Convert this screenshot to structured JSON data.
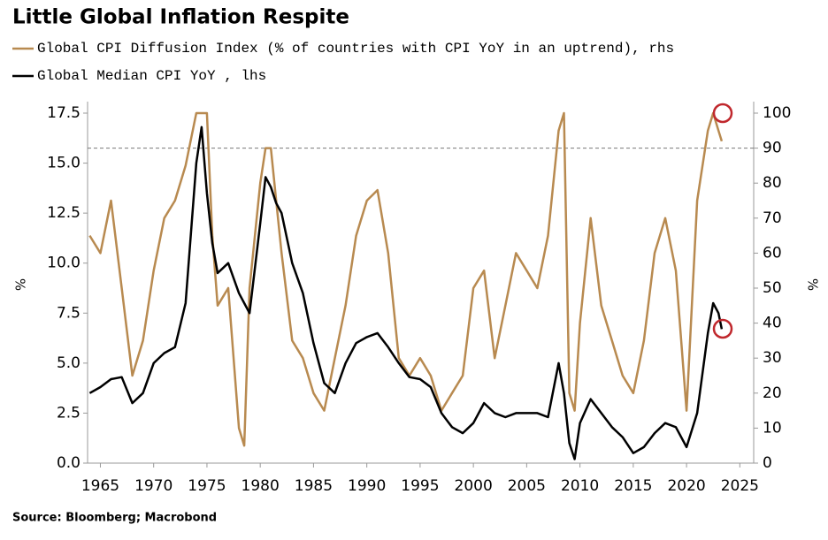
{
  "chart_data": {
    "type": "line",
    "title": "Little Global Inflation Respite",
    "source": "Source: Bloomberg; Macrobond",
    "ylabel": "%",
    "y2label": "%",
    "x": [
      1964,
      1965,
      1966,
      1967,
      1968,
      1969,
      1970,
      1971,
      1972,
      1973,
      1974,
      1974.5,
      1975,
      1975.5,
      1976,
      1977,
      1978,
      1978.5,
      1979,
      1980,
      1980.5,
      1981,
      1981.5,
      1982,
      1983,
      1984,
      1985,
      1986,
      1987,
      1988,
      1989,
      1990,
      1991,
      1992,
      1993,
      1994,
      1995,
      1996,
      1997,
      1998,
      1999,
      2000,
      2001,
      2002,
      2003,
      2004,
      2005,
      2006,
      2007,
      2008,
      2008.5,
      2009,
      2009.5,
      2010,
      2011,
      2012,
      2013,
      2014,
      2015,
      2016,
      2017,
      2018,
      2019,
      2020,
      2021,
      2022,
      2022.5,
      2023,
      2023.3
    ],
    "series": [
      {
        "name": "Global CPI Diffusion Index (% of countries with CPI YoY in an uptrend), rhs",
        "color": "#b88a50",
        "axis": "y2",
        "values": [
          65,
          60,
          75,
          50,
          25,
          35,
          55,
          70,
          75,
          85,
          100,
          100,
          100,
          65,
          45,
          50,
          10,
          5,
          50,
          80,
          90,
          90,
          75,
          60,
          35,
          30,
          20,
          15,
          30,
          45,
          65,
          75,
          78,
          60,
          30,
          25,
          30,
          25,
          15,
          20,
          25,
          50,
          55,
          30,
          45,
          60,
          55,
          50,
          65,
          95,
          100,
          20,
          15,
          40,
          70,
          45,
          35,
          25,
          20,
          35,
          60,
          70,
          55,
          15,
          75,
          95,
          100,
          95,
          92
        ]
      },
      {
        "name": "Global Median CPI YoY , lhs",
        "color": "#000000",
        "axis": "y",
        "values": [
          3.5,
          3.8,
          4.2,
          4.3,
          3.0,
          3.5,
          5.0,
          5.5,
          5.8,
          8.0,
          15.0,
          16.8,
          13.5,
          11.0,
          9.5,
          10.0,
          8.5,
          8.0,
          7.5,
          12.0,
          14.3,
          13.8,
          13.0,
          12.5,
          10.0,
          8.5,
          6.0,
          4.0,
          3.5,
          5.0,
          6.0,
          6.3,
          6.5,
          5.8,
          5.0,
          4.3,
          4.2,
          3.8,
          2.5,
          1.8,
          1.5,
          2.0,
          3.0,
          2.5,
          2.3,
          2.5,
          2.5,
          2.5,
          2.3,
          5.0,
          3.5,
          1.0,
          0.2,
          2.0,
          3.2,
          2.5,
          1.8,
          1.3,
          0.5,
          0.8,
          1.5,
          2.0,
          1.8,
          0.8,
          2.5,
          6.5,
          8.0,
          7.5,
          6.7
        ]
      }
    ],
    "xlim": [
      1963.8,
      2026.3
    ],
    "xticks": [
      1965,
      1970,
      1975,
      1980,
      1985,
      1990,
      1995,
      2000,
      2005,
      2010,
      2015,
      2020,
      2025
    ],
    "ylim": [
      0,
      17.5
    ],
    "yticks": [
      {
        "value": 0,
        "label": "0.0"
      },
      2.5,
      {
        "value": 5,
        "label": "5.0"
      },
      7.5,
      {
        "value": 10,
        "label": "10.0"
      },
      12.5,
      {
        "value": 15,
        "label": "15.0"
      },
      17.5
    ],
    "y2lim": [
      0,
      100
    ],
    "y2ticks": [
      0,
      10,
      20,
      30,
      40,
      50,
      60,
      70,
      80,
      90,
      100
    ],
    "reference_line_y2": 90,
    "grid": false
  }
}
